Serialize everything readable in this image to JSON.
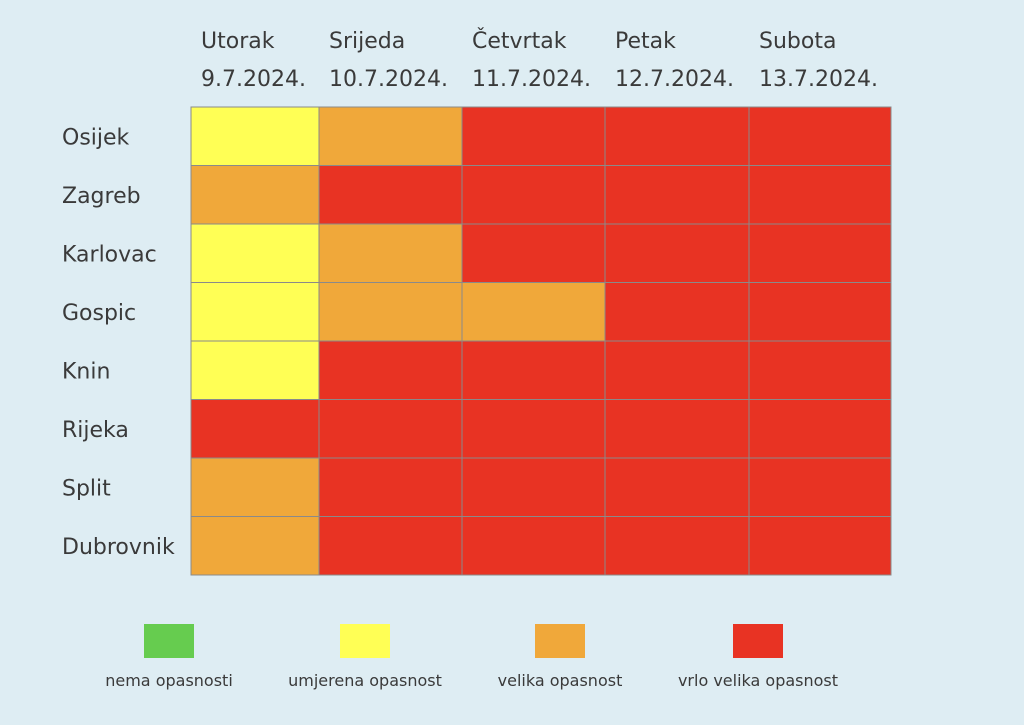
{
  "chart_data": {
    "type": "heatmap",
    "title": "",
    "columns": [
      {
        "day": "Utorak",
        "date": "9.7.2024."
      },
      {
        "day": "Srijeda",
        "date": "10.7.2024."
      },
      {
        "day": "Četvrtak",
        "date": "11.7.2024."
      },
      {
        "day": "Petak",
        "date": "12.7.2024."
      },
      {
        "day": "Subota",
        "date": "13.7.2024."
      }
    ],
    "rows": [
      "Osijek",
      "Zagreb",
      "Karlovac",
      "Gospic",
      "Knin",
      "Rijeka",
      "Split",
      "Dubrovnik"
    ],
    "levels": [
      {
        "key": "nema",
        "label": "nema opasnosti",
        "color": "#66cc4f"
      },
      {
        "key": "umjerena",
        "label": "umjerena opasnost",
        "color": "#ffff55"
      },
      {
        "key": "velika",
        "label": "velika opasnost",
        "color": "#f0a83a"
      },
      {
        "key": "vrlo_velika",
        "label": "vrlo velika opasnost",
        "color": "#e83323"
      }
    ],
    "values": [
      [
        "umjerena",
        "velika",
        "vrlo_velika",
        "vrlo_velika",
        "vrlo_velika"
      ],
      [
        "velika",
        "vrlo_velika",
        "vrlo_velika",
        "vrlo_velika",
        "vrlo_velika"
      ],
      [
        "umjerena",
        "velika",
        "vrlo_velika",
        "vrlo_velika",
        "vrlo_velika"
      ],
      [
        "umjerena",
        "velika",
        "velika",
        "vrlo_velika",
        "vrlo_velika"
      ],
      [
        "umjerena",
        "vrlo_velika",
        "vrlo_velika",
        "vrlo_velika",
        "vrlo_velika"
      ],
      [
        "vrlo_velika",
        "vrlo_velika",
        "vrlo_velika",
        "vrlo_velika",
        "vrlo_velika"
      ],
      [
        "velika",
        "vrlo_velika",
        "vrlo_velika",
        "vrlo_velika",
        "vrlo_velika"
      ],
      [
        "velika",
        "vrlo_velika",
        "vrlo_velika",
        "vrlo_velika",
        "vrlo_velika"
      ]
    ],
    "legend_position": "bottom",
    "grid": true
  },
  "colors": {
    "background": "#deedf3",
    "grid_line": "#8a8a8a",
    "text": "#3a3a3a"
  }
}
